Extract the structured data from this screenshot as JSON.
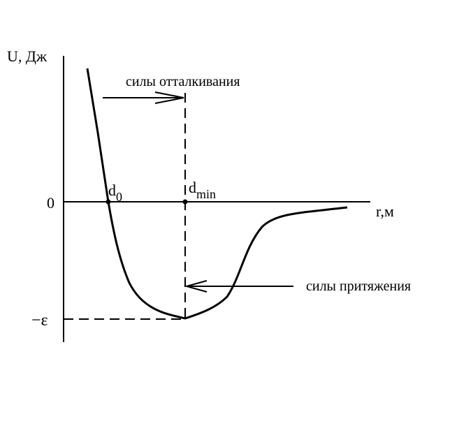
{
  "diagram": {
    "y_axis_label": "U, Дж",
    "x_axis_label": "r,м",
    "zero_label": "0",
    "epsilon_label": "−ε",
    "d0_label": {
      "base": "d",
      "sub": "0"
    },
    "dmin_label": {
      "base": "d",
      "sub": "min"
    },
    "repulsion_label": "силы отталкивания",
    "attraction_label": "силы притяжения"
  }
}
